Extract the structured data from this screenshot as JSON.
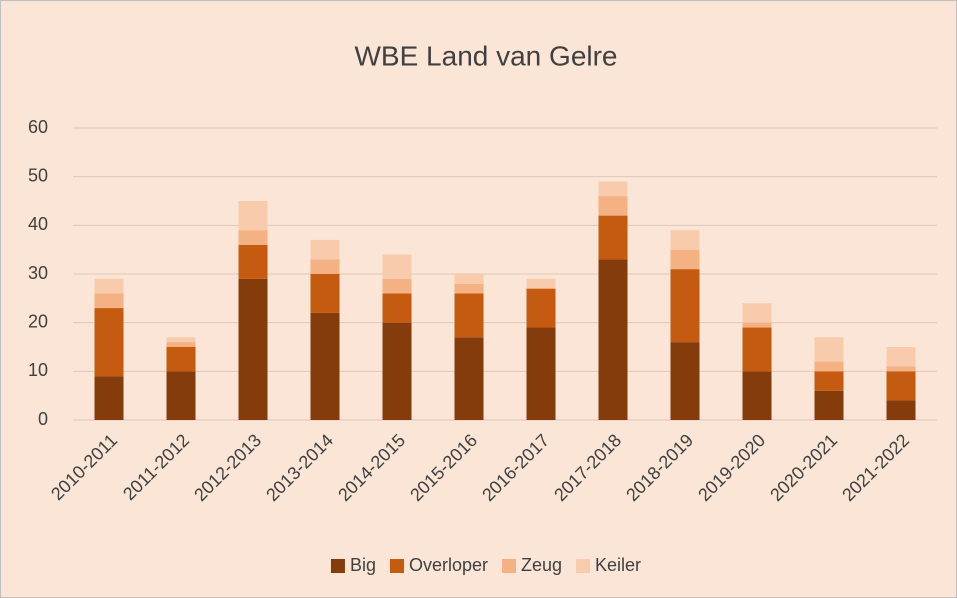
{
  "chart_data": {
    "type": "stacked_bar",
    "title": "WBE Land van Gelre",
    "categories": [
      "2010-2011",
      "2011-2012",
      "2012-2013",
      "2013-2014",
      "2014-2015",
      "2015-2016",
      "2016-2017",
      "2017-2018",
      "2018-2019",
      "2019-2020",
      "2020-2021",
      "2021-2022"
    ],
    "series": [
      {
        "name": "Big",
        "color": "#843c0c",
        "values": [
          9,
          10,
          29,
          22,
          20,
          17,
          19,
          33,
          16,
          10,
          6,
          4
        ]
      },
      {
        "name": "Overloper",
        "color": "#c55a11",
        "values": [
          14,
          5,
          7,
          8,
          6,
          9,
          8,
          9,
          15,
          9,
          4,
          6
        ]
      },
      {
        "name": "Zeug",
        "color": "#f4b183",
        "values": [
          3,
          1,
          3,
          3,
          3,
          2,
          0,
          4,
          4,
          1,
          2,
          1
        ]
      },
      {
        "name": "Keiler",
        "color": "#f8cbad",
        "values": [
          3,
          1,
          6,
          4,
          5,
          2,
          2,
          3,
          4,
          4,
          5,
          4
        ]
      }
    ],
    "ylim": [
      0,
      60
    ],
    "yticks": [
      0,
      10,
      20,
      30,
      40,
      50,
      60
    ],
    "grid": true,
    "legend": "bottom"
  }
}
